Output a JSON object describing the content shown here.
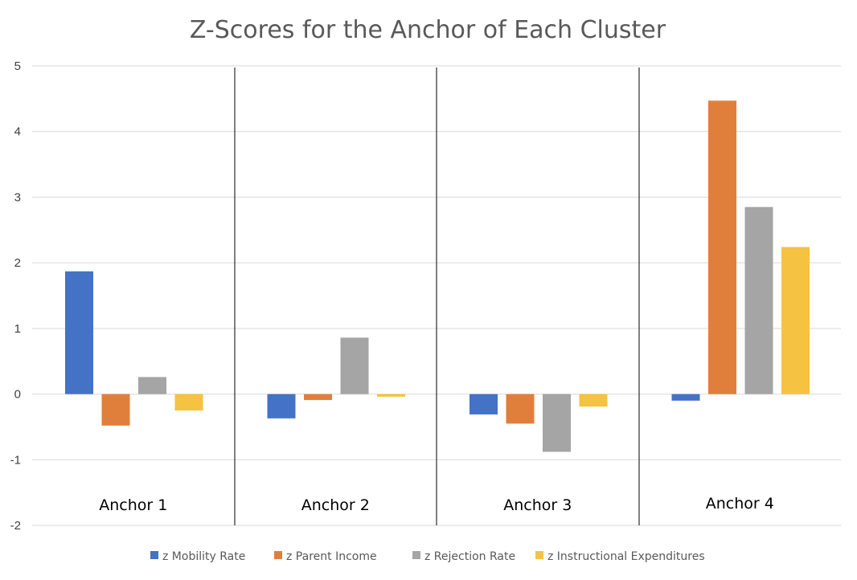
{
  "chart_data": {
    "type": "bar",
    "title": "Z-Scores for the Anchor of Each Cluster",
    "categories": [
      "Anchor 1",
      "Anchor 2",
      "Anchor 3",
      "Anchor 4"
    ],
    "series": [
      {
        "name": "z Mobility Rate",
        "color": "#4472c4",
        "values": [
          1.87,
          -0.37,
          -0.31,
          -0.1
        ]
      },
      {
        "name": "z Parent Income",
        "color": "#e07f3c",
        "values": [
          -0.48,
          -0.09,
          -0.45,
          4.47
        ]
      },
      {
        "name": "z Rejection Rate",
        "color": "#a5a5a5",
        "values": [
          0.26,
          0.86,
          -0.88,
          2.85
        ]
      },
      {
        "name": "z Instructional Expenditures",
        "color": "#f5c242",
        "values": [
          -0.25,
          -0.04,
          -0.19,
          2.24
        ]
      }
    ],
    "ylim": [
      -2,
      5
    ],
    "yticks": [
      "-2",
      "-1",
      "0",
      "1",
      "2",
      "3",
      "4",
      "5"
    ],
    "xlabel": "",
    "ylabel": "",
    "grid": true,
    "legend": "bottom"
  }
}
